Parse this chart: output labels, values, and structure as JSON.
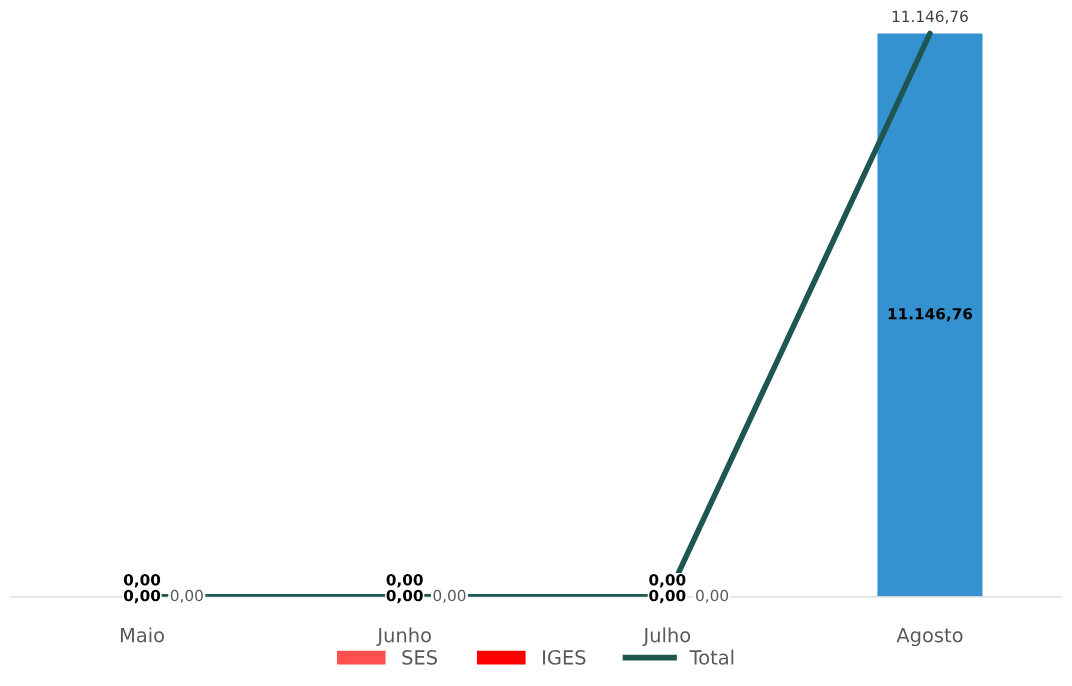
{
  "chart_data": {
    "type": "bar",
    "stacked": true,
    "categories": [
      "Maio",
      "Junho",
      "Julho",
      "Agosto"
    ],
    "series": [
      {
        "name": "SES",
        "color": "#ff5050",
        "values": [
          0,
          0,
          0,
          null
        ],
        "value_labels": [
          "0,00",
          "0,00",
          "0,00",
          null
        ]
      },
      {
        "name": "IGES",
        "color": "#ff0000",
        "values": [
          0,
          0,
          0,
          null
        ],
        "value_labels": [
          "0,00",
          "0,00",
          "0,00",
          null
        ]
      },
      {
        "color": "#3592d0",
        "values": [
          null,
          null,
          null,
          11146.76
        ],
        "value_labels": [
          null,
          null,
          null,
          "11.146,76"
        ]
      },
      {
        "name": "Total",
        "type": "line",
        "color": "#1e5652",
        "values": [
          0,
          0,
          0,
          11146.76
        ],
        "value_labels": [
          "0,00",
          "0,00",
          "0,00",
          "11.146,76"
        ]
      }
    ],
    "tick_labels": "x",
    "grid": false,
    "legend": "bottom"
  }
}
